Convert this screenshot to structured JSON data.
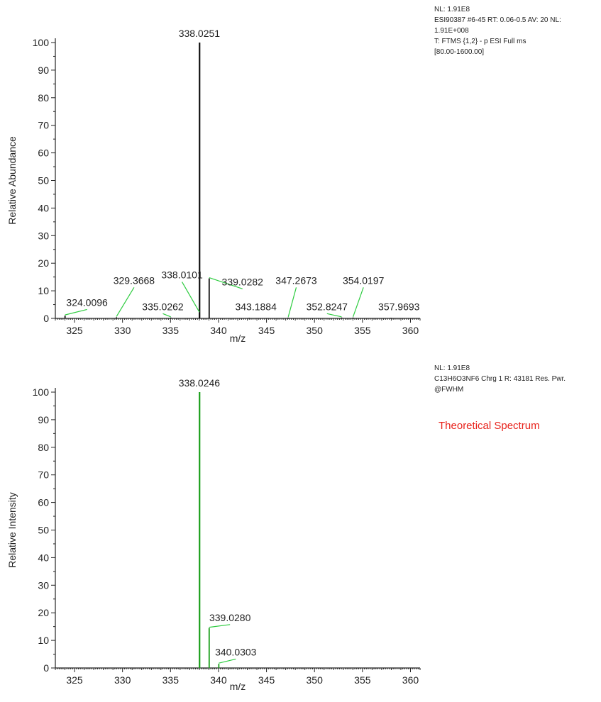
{
  "chart_data": [
    {
      "type": "bar",
      "title": "",
      "xlabel": "m/z",
      "ylabel": "Relative Abundance",
      "xlim": [
        323,
        361
      ],
      "ylim": [
        0,
        100
      ],
      "xticks": [
        325,
        330,
        335,
        340,
        345,
        350,
        355,
        360
      ],
      "yticks": [
        0,
        10,
        20,
        30,
        40,
        50,
        60,
        70,
        80,
        90,
        100
      ],
      "bar_color": "#111111",
      "info_lines": [
        "NL: 1.91E8",
        "ESI90387 #6-45  RT: 0.06-0.5 AV: 20 NL:",
        "1.91E+008",
        "T: FTMS {1,2} - p ESI Full ms",
        "[80.00-1600.00]"
      ],
      "peaks": [
        {
          "mz": 338.0251,
          "intensity": 100,
          "label": "338.0251",
          "lx": 338.0,
          "ly": 101.5,
          "leader": false
        },
        {
          "mz": 338.0101,
          "intensity": 2.0,
          "label": "338.0101",
          "lx": 336.2,
          "ly": 14.0,
          "leader": true
        },
        {
          "mz": 339.0282,
          "intensity": 14.5,
          "label": "339.0282",
          "lx": 342.5,
          "ly": 11.5,
          "leader": true
        },
        {
          "mz": 324.0096,
          "intensity": 1.0,
          "label": "324.0096",
          "lx": 326.3,
          "ly": 4.0,
          "leader": true
        },
        {
          "mz": 329.3668,
          "intensity": 0.4,
          "label": "329.3668",
          "lx": 331.2,
          "ly": 12.0,
          "leader": true
        },
        {
          "mz": 335.0262,
          "intensity": 0.3,
          "label": "335.0262",
          "lx": 334.2,
          "ly": 2.5,
          "leader": true
        },
        {
          "mz": 343.1884,
          "intensity": 0.2,
          "label": "343.1884",
          "lx": 343.9,
          "ly": 2.5,
          "leader": false
        },
        {
          "mz": 347.2673,
          "intensity": 0.3,
          "label": "347.2673",
          "lx": 348.1,
          "ly": 12.0,
          "leader": true
        },
        {
          "mz": 352.8247,
          "intensity": 0.3,
          "label": "352.8247",
          "lx": 351.3,
          "ly": 2.5,
          "leader": true
        },
        {
          "mz": 354.0197,
          "intensity": 0.3,
          "label": "354.0197",
          "lx": 355.1,
          "ly": 12.0,
          "leader": true
        },
        {
          "mz": 357.9693,
          "intensity": 0.2,
          "label": "357.9693",
          "lx": 358.8,
          "ly": 2.5,
          "leader": false
        }
      ]
    },
    {
      "type": "bar",
      "title": "Theoretical Spectrum",
      "xlabel": "m/z",
      "ylabel": "Relative Intensity",
      "xlim": [
        323,
        361
      ],
      "ylim": [
        0,
        100
      ],
      "xticks": [
        325,
        330,
        335,
        340,
        345,
        350,
        355,
        360
      ],
      "yticks": [
        0,
        10,
        20,
        30,
        40,
        50,
        60,
        70,
        80,
        90,
        100
      ],
      "bar_color": "#1a9e1a",
      "title_color": "#e8231c",
      "info_lines": [
        "NL: 1.91E8",
        "C13H6O3NF6   Chrg 1 R: 43181 Res. Pwr.",
        "@FWHM"
      ],
      "peaks": [
        {
          "mz": 338.0246,
          "intensity": 100,
          "label": "338.0246",
          "lx": 338.0,
          "ly": 101.5,
          "leader": false
        },
        {
          "mz": 339.028,
          "intensity": 14.5,
          "label": "339.0280",
          "lx": 341.2,
          "ly": 16.5,
          "leader": true
        },
        {
          "mz": 340.0303,
          "intensity": 1.5,
          "label": "340.0303",
          "lx": 341.8,
          "ly": 4.0,
          "leader": true
        }
      ]
    }
  ]
}
